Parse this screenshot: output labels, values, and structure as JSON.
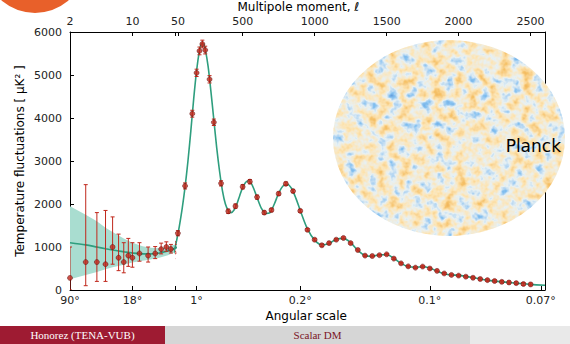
{
  "slide": {
    "footer": {
      "left": "Honorez (TENA-VUB)",
      "center": "Scalar DM"
    },
    "image_label": "Planck"
  },
  "chart_data": {
    "type": "scatter",
    "x_label": "Multipole moment, ℓ",
    "x2_label": "Angular scale",
    "y_label": "Temperature fluctuations [ μK² ]",
    "ylim": [
      0,
      6000
    ],
    "yticks": [
      0,
      1000,
      2000,
      3000,
      4000,
      5000,
      6000
    ],
    "grid": false,
    "panels": [
      {
        "log": "x",
        "xlim": [
          2,
          30
        ],
        "xticks": [
          2,
          10
        ],
        "x2ticks": [
          {
            "value": 2,
            "label": "90°"
          },
          {
            "value": 10,
            "label": "18°"
          }
        ]
      },
      {
        "xlim": [
          30,
          2600
        ],
        "xticks": [
          50,
          500,
          1000,
          1500,
          2000,
          2500
        ],
        "x2ticks": [
          {
            "value": 180,
            "label": "1°"
          },
          {
            "value": 900,
            "label": "0.2°"
          },
          {
            "value": 1800,
            "label": "0.1°"
          },
          {
            "value": 2571,
            "label": "0.07°"
          }
        ]
      }
    ],
    "band": {
      "color": "#a9ddd0",
      "x": [
        2,
        3,
        4,
        5,
        6,
        8,
        10,
        13,
        16,
        20,
        25,
        30
      ],
      "low": [
        250,
        350,
        420,
        480,
        530,
        590,
        640,
        680,
        710,
        750,
        810,
        880
      ],
      "high": [
        1950,
        1750,
        1600,
        1450,
        1350,
        1200,
        1100,
        1020,
        980,
        970,
        1010,
        1060
      ]
    },
    "series": [
      {
        "type": "line",
        "color": "#2e9e7e",
        "line_style": "solid",
        "x": [
          2,
          3,
          4,
          5,
          6,
          8,
          10,
          13,
          16,
          20,
          25,
          30,
          40,
          50,
          60,
          80,
          100,
          120,
          140,
          160,
          180,
          200,
          210,
          220,
          230,
          240,
          260,
          280,
          300,
          320,
          340,
          360,
          380,
          400,
          420,
          440,
          460,
          480,
          500,
          520,
          540,
          560,
          580,
          600,
          630,
          660,
          690,
          720,
          750,
          780,
          810,
          840,
          870,
          900,
          950,
          1000,
          1050,
          1100,
          1150,
          1200,
          1250,
          1300,
          1350,
          1400,
          1450,
          1500,
          1550,
          1600,
          1650,
          1700,
          1750,
          1800,
          1850,
          1900,
          1950,
          2000,
          2100,
          2200,
          2300,
          2400,
          2500,
          2600
        ],
        "values": [
          1100,
          1050,
          1000,
          960,
          930,
          890,
          860,
          840,
          840,
          860,
          910,
          970,
          1130,
          1300,
          1480,
          1900,
          2400,
          3000,
          3700,
          4450,
          5100,
          5580,
          5700,
          5740,
          5710,
          5600,
          5200,
          4600,
          3950,
          3300,
          2750,
          2300,
          2000,
          1850,
          1800,
          1860,
          2000,
          2200,
          2380,
          2500,
          2540,
          2480,
          2330,
          2150,
          1900,
          1780,
          1800,
          2000,
          2250,
          2420,
          2460,
          2360,
          2130,
          1850,
          1420,
          1160,
          1050,
          1080,
          1180,
          1200,
          1100,
          920,
          800,
          780,
          820,
          820,
          740,
          620,
          540,
          530,
          540,
          510,
          440,
          380,
          350,
          340,
          290,
          230,
          190,
          160,
          130,
          110
        ]
      },
      {
        "type": "scatter",
        "color": "#c0281c",
        "marker": "circle",
        "x": [
          2,
          3,
          4,
          5,
          6,
          7,
          8,
          9,
          10,
          12,
          15,
          18,
          21,
          24,
          27,
          50,
          100,
          150,
          180,
          200,
          220,
          240,
          270,
          300,
          350,
          400,
          450,
          500,
          550,
          600,
          650,
          700,
          750,
          800,
          850,
          900,
          950,
          1000,
          1050,
          1100,
          1150,
          1200,
          1250,
          1300,
          1350,
          1400,
          1450,
          1500,
          1550,
          1600,
          1650,
          1700,
          1750,
          1800,
          1850,
          1900,
          1950,
          2000,
          2050,
          2100,
          2150,
          2200,
          2250,
          2300,
          2350,
          2400,
          2450,
          2500
        ],
        "values": [
          280,
          650,
          650,
          600,
          1000,
          750,
          650,
          800,
          750,
          850,
          800,
          850,
          950,
          1000,
          950,
          1320,
          2420,
          4100,
          5050,
          5560,
          5720,
          5580,
          4900,
          3900,
          2480,
          1830,
          1950,
          2400,
          2520,
          2160,
          1800,
          1860,
          2240,
          2470,
          2300,
          1840,
          1400,
          1170,
          1040,
          1090,
          1170,
          1210,
          1090,
          930,
          800,
          790,
          810,
          830,
          730,
          620,
          550,
          520,
          545,
          500,
          445,
          385,
          350,
          335,
          310,
          285,
          255,
          230,
          210,
          190,
          175,
          160,
          140,
          130
        ],
        "err_minus": [
          280,
          550,
          450,
          400,
          400,
          300,
          250,
          250,
          220,
          180,
          150,
          120,
          110,
          100,
          90,
          60,
          70,
          80,
          85,
          90,
          90,
          90,
          85,
          75,
          60,
          50,
          50,
          50,
          50,
          45,
          40,
          40,
          40,
          40,
          35,
          35,
          30,
          30,
          28,
          28,
          26,
          26,
          24,
          24,
          22,
          22,
          20,
          20,
          20,
          20,
          20,
          20,
          20,
          20,
          22,
          22,
          24,
          24,
          26,
          26,
          28,
          28,
          30,
          30,
          32,
          32,
          34,
          34
        ],
        "err_plus": [
          720,
          1800,
          1150,
          1250,
          700,
          550,
          450,
          400,
          350,
          250,
          200,
          160,
          140,
          120,
          110,
          60,
          70,
          80,
          85,
          90,
          90,
          90,
          85,
          75,
          60,
          50,
          50,
          50,
          50,
          45,
          40,
          40,
          40,
          40,
          35,
          35,
          30,
          30,
          28,
          28,
          26,
          26,
          24,
          24,
          22,
          22,
          20,
          20,
          20,
          20,
          20,
          20,
          20,
          20,
          22,
          22,
          24,
          24,
          26,
          26,
          28,
          28,
          30,
          30,
          32,
          32,
          34,
          34
        ]
      }
    ]
  }
}
